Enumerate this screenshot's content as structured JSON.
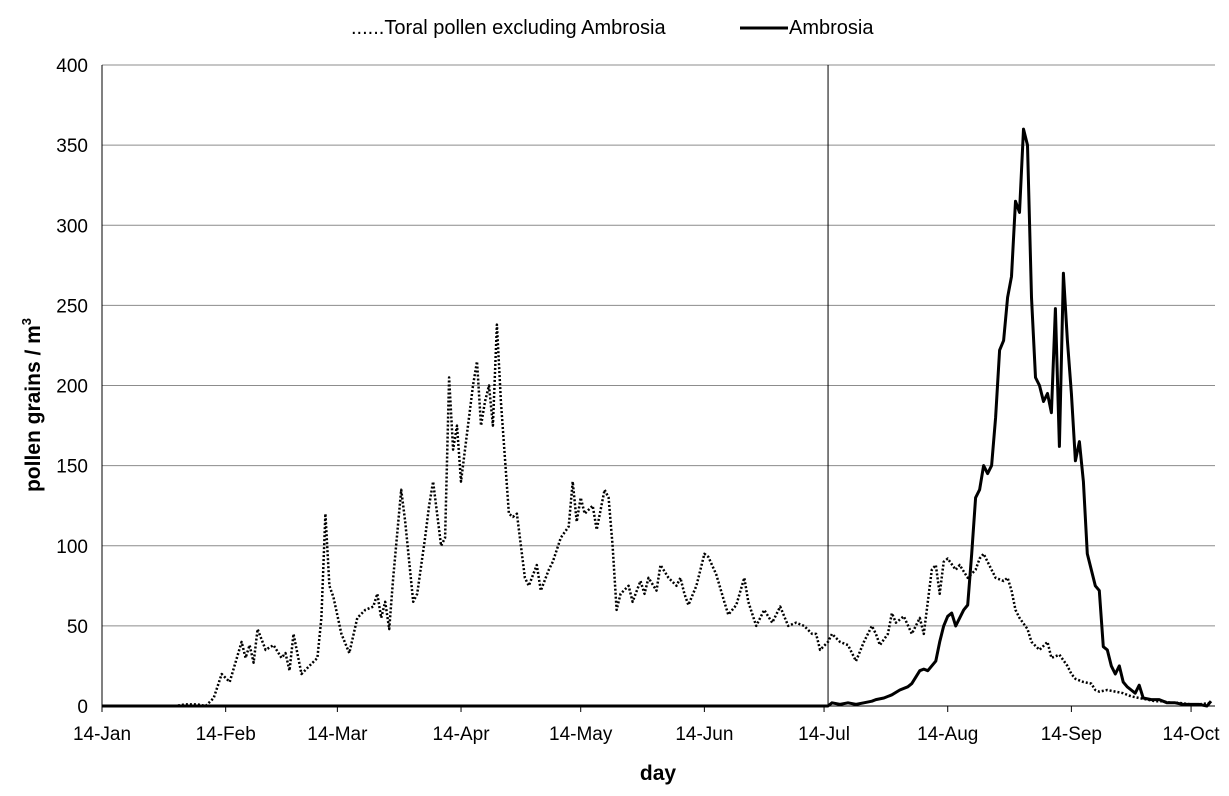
{
  "chart_data": {
    "type": "line",
    "title": "",
    "xlabel": "day",
    "ylabel": "pollen grains / m",
    "ylabel_superscript": "3",
    "ylim": [
      0,
      400
    ],
    "yticks": [
      0,
      50,
      100,
      150,
      200,
      250,
      300,
      350,
      400
    ],
    "xlim": [
      "14-Jan",
      "20-Oct"
    ],
    "xticks": [
      "14-Jan",
      "14-Feb",
      "14-Mar",
      "14-Apr",
      "14-May",
      "14-Jun",
      "14-Jul",
      "14-Aug",
      "14-Sep",
      "14-Oct"
    ],
    "grid": "horizontal",
    "legend_position": "top",
    "reference_line_x": "15-Jul",
    "series": [
      {
        "name": "Toral pollen excluding Ambrosia",
        "legend_label": "......Toral pollen excluding Ambrosia",
        "style": "dotted",
        "color": "#000000",
        "points": [
          [
            "14-Jan",
            0
          ],
          [
            "1-Feb",
            0
          ],
          [
            "4-Feb",
            1
          ],
          [
            "7-Feb",
            1
          ],
          [
            "9-Feb",
            0
          ],
          [
            "11-Feb",
            5
          ],
          [
            "13-Feb",
            20
          ],
          [
            "15-Feb",
            15
          ],
          [
            "18-Feb",
            40
          ],
          [
            "19-Feb",
            30
          ],
          [
            "20-Feb",
            38
          ],
          [
            "21-Feb",
            27
          ],
          [
            "22-Feb",
            48
          ],
          [
            "24-Feb",
            35
          ],
          [
            "26-Feb",
            38
          ],
          [
            "28-Feb",
            30
          ],
          [
            "1-Mar",
            33
          ],
          [
            "2-Mar",
            22
          ],
          [
            "3-Mar",
            45
          ],
          [
            "5-Mar",
            20
          ],
          [
            "7-Mar",
            25
          ],
          [
            "9-Mar",
            30
          ],
          [
            "10-Mar",
            55
          ],
          [
            "11-Mar",
            120
          ],
          [
            "12-Mar",
            75
          ],
          [
            "13-Mar",
            68
          ],
          [
            "15-Mar",
            45
          ],
          [
            "17-Mar",
            33
          ],
          [
            "19-Mar",
            55
          ],
          [
            "21-Mar",
            60
          ],
          [
            "23-Mar",
            62
          ],
          [
            "24-Mar",
            70
          ],
          [
            "25-Mar",
            55
          ],
          [
            "26-Mar",
            65
          ],
          [
            "27-Mar",
            48
          ],
          [
            "28-Mar",
            80
          ],
          [
            "30-Mar",
            135
          ],
          [
            "31-Mar",
            115
          ],
          [
            "1-Apr",
            90
          ],
          [
            "2-Apr",
            65
          ],
          [
            "3-Apr",
            70
          ],
          [
            "5-Apr",
            105
          ],
          [
            "6-Apr",
            125
          ],
          [
            "7-Apr",
            140
          ],
          [
            "9-Apr",
            100
          ],
          [
            "10-Apr",
            105
          ],
          [
            "11-Apr",
            205
          ],
          [
            "12-Apr",
            160
          ],
          [
            "13-Apr",
            175
          ],
          [
            "14-Apr",
            140
          ],
          [
            "15-Apr",
            160
          ],
          [
            "17-Apr",
            200
          ],
          [
            "18-Apr",
            215
          ],
          [
            "19-Apr",
            175
          ],
          [
            "20-Apr",
            190
          ],
          [
            "21-Apr",
            200
          ],
          [
            "22-Apr",
            175
          ],
          [
            "23-Apr",
            238
          ],
          [
            "24-Apr",
            190
          ],
          [
            "25-Apr",
            155
          ],
          [
            "26-Apr",
            120
          ],
          [
            "27-Apr",
            118
          ],
          [
            "28-Apr",
            120
          ],
          [
            "30-Apr",
            80
          ],
          [
            "1-May",
            75
          ],
          [
            "3-May",
            88
          ],
          [
            "4-May",
            72
          ],
          [
            "6-May",
            85
          ],
          [
            "7-May",
            90
          ],
          [
            "9-May",
            105
          ],
          [
            "11-May",
            112
          ],
          [
            "12-May",
            140
          ],
          [
            "13-May",
            115
          ],
          [
            "14-May",
            130
          ],
          [
            "15-May",
            120
          ],
          [
            "17-May",
            125
          ],
          [
            "18-May",
            110
          ],
          [
            "20-May",
            135
          ],
          [
            "21-May",
            130
          ],
          [
            "22-May",
            100
          ],
          [
            "23-May",
            60
          ],
          [
            "24-May",
            70
          ],
          [
            "26-May",
            75
          ],
          [
            "27-May",
            65
          ],
          [
            "29-May",
            78
          ],
          [
            "30-May",
            70
          ],
          [
            "31-May",
            80
          ],
          [
            "2-Jun",
            72
          ],
          [
            "3-Jun",
            88
          ],
          [
            "5-Jun",
            80
          ],
          [
            "7-Jun",
            75
          ],
          [
            "8-Jun",
            80
          ],
          [
            "9-Jun",
            70
          ],
          [
            "10-Jun",
            63
          ],
          [
            "12-Jun",
            75
          ],
          [
            "14-Jun",
            95
          ],
          [
            "15-Jun",
            93
          ],
          [
            "17-Jun",
            82
          ],
          [
            "19-Jun",
            65
          ],
          [
            "20-Jun",
            57
          ],
          [
            "22-Jun",
            63
          ],
          [
            "24-Jun",
            80
          ],
          [
            "25-Jun",
            65
          ],
          [
            "27-Jun",
            50
          ],
          [
            "29-Jun",
            60
          ],
          [
            "1-Jul",
            52
          ],
          [
            "3-Jul",
            62
          ],
          [
            "5-Jul",
            50
          ],
          [
            "7-Jul",
            52
          ],
          [
            "9-Jul",
            50
          ],
          [
            "11-Jul",
            45
          ],
          [
            "12-Jul",
            45
          ],
          [
            "13-Jul",
            35
          ],
          [
            "15-Jul",
            40
          ],
          [
            "16-Jul",
            45
          ],
          [
            "18-Jul",
            40
          ],
          [
            "20-Jul",
            38
          ],
          [
            "21-Jul",
            33
          ],
          [
            "22-Jul",
            28
          ],
          [
            "24-Jul",
            40
          ],
          [
            "26-Jul",
            50
          ],
          [
            "27-Jul",
            45
          ],
          [
            "28-Jul",
            38
          ],
          [
            "30-Jul",
            45
          ],
          [
            "31-Jul",
            58
          ],
          [
            "1-Aug",
            52
          ],
          [
            "3-Aug",
            56
          ],
          [
            "5-Aug",
            45
          ],
          [
            "7-Aug",
            55
          ],
          [
            "8-Aug",
            45
          ],
          [
            "10-Aug",
            85
          ],
          [
            "11-Aug",
            88
          ],
          [
            "12-Aug",
            70
          ],
          [
            "13-Aug",
            90
          ],
          [
            "14-Aug",
            92
          ],
          [
            "16-Aug",
            85
          ],
          [
            "17-Aug",
            88
          ],
          [
            "19-Aug",
            80
          ],
          [
            "21-Aug",
            85
          ],
          [
            "22-Aug",
            92
          ],
          [
            "23-Aug",
            95
          ],
          [
            "24-Aug",
            90
          ],
          [
            "26-Aug",
            80
          ],
          [
            "28-Aug",
            78
          ],
          [
            "29-Aug",
            80
          ],
          [
            "30-Aug",
            72
          ],
          [
            "31-Aug",
            60
          ],
          [
            "1-Sep",
            55
          ],
          [
            "3-Sep",
            48
          ],
          [
            "4-Sep",
            40
          ],
          [
            "6-Sep",
            35
          ],
          [
            "8-Sep",
            40
          ],
          [
            "9-Sep",
            30
          ],
          [
            "11-Sep",
            32
          ],
          [
            "13-Sep",
            25
          ],
          [
            "14-Sep",
            20
          ],
          [
            "15-Sep",
            17
          ],
          [
            "17-Sep",
            15
          ],
          [
            "19-Sep",
            14
          ],
          [
            "20-Sep",
            10
          ],
          [
            "21-Sep",
            9
          ],
          [
            "23-Sep",
            10
          ],
          [
            "25-Sep",
            9
          ],
          [
            "27-Sep",
            8
          ],
          [
            "29-Sep",
            6
          ],
          [
            "1-Oct",
            5
          ],
          [
            "3-Oct",
            4
          ],
          [
            "5-Oct",
            3
          ],
          [
            "7-Oct",
            3
          ],
          [
            "9-Oct",
            2
          ],
          [
            "11-Oct",
            2
          ],
          [
            "14-Oct",
            1
          ],
          [
            "16-Oct",
            1
          ],
          [
            "19-Oct",
            2
          ]
        ]
      },
      {
        "name": "Ambrosia",
        "legend_label": "Ambrosia",
        "style": "solid",
        "color": "#000000",
        "points": [
          [
            "14-Jan",
            0
          ],
          [
            "15-Jul",
            0
          ],
          [
            "16-Jul",
            2
          ],
          [
            "18-Jul",
            1
          ],
          [
            "20-Jul",
            2
          ],
          [
            "22-Jul",
            1
          ],
          [
            "24-Jul",
            2
          ],
          [
            "26-Jul",
            3
          ],
          [
            "27-Jul",
            4
          ],
          [
            "29-Jul",
            5
          ],
          [
            "31-Jul",
            7
          ],
          [
            "2-Aug",
            10
          ],
          [
            "4-Aug",
            12
          ],
          [
            "5-Aug",
            14
          ],
          [
            "7-Aug",
            22
          ],
          [
            "8-Aug",
            23
          ],
          [
            "9-Aug",
            22
          ],
          [
            "11-Aug",
            28
          ],
          [
            "12-Aug",
            40
          ],
          [
            "13-Aug",
            50
          ],
          [
            "14-Aug",
            56
          ],
          [
            "15-Aug",
            58
          ],
          [
            "16-Aug",
            50
          ],
          [
            "17-Aug",
            55
          ],
          [
            "18-Aug",
            60
          ],
          [
            "19-Aug",
            63
          ],
          [
            "20-Aug",
            95
          ],
          [
            "21-Aug",
            130
          ],
          [
            "22-Aug",
            135
          ],
          [
            "23-Aug",
            150
          ],
          [
            "24-Aug",
            145
          ],
          [
            "25-Aug",
            150
          ],
          [
            "26-Aug",
            180
          ],
          [
            "27-Aug",
            222
          ],
          [
            "28-Aug",
            228
          ],
          [
            "29-Aug",
            255
          ],
          [
            "30-Aug",
            268
          ],
          [
            "31-Aug",
            315
          ],
          [
            "1-Sep",
            308
          ],
          [
            "2-Sep",
            360
          ],
          [
            "3-Sep",
            350
          ],
          [
            "4-Sep",
            255
          ],
          [
            "5-Sep",
            205
          ],
          [
            "6-Sep",
            200
          ],
          [
            "7-Sep",
            190
          ],
          [
            "8-Sep",
            195
          ],
          [
            "9-Sep",
            183
          ],
          [
            "10-Sep",
            248
          ],
          [
            "11-Sep",
            162
          ],
          [
            "12-Sep",
            270
          ],
          [
            "13-Sep",
            228
          ],
          [
            "14-Sep",
            195
          ],
          [
            "15-Sep",
            153
          ],
          [
            "16-Sep",
            165
          ],
          [
            "17-Sep",
            140
          ],
          [
            "18-Sep",
            95
          ],
          [
            "19-Sep",
            85
          ],
          [
            "20-Sep",
            75
          ],
          [
            "21-Sep",
            72
          ],
          [
            "22-Sep",
            37
          ],
          [
            "23-Sep",
            35
          ],
          [
            "24-Sep",
            25
          ],
          [
            "25-Sep",
            20
          ],
          [
            "26-Sep",
            25
          ],
          [
            "27-Sep",
            15
          ],
          [
            "28-Sep",
            12
          ],
          [
            "29-Sep",
            10
          ],
          [
            "30-Sep",
            8
          ],
          [
            "1-Oct",
            13
          ],
          [
            "2-Oct",
            5
          ],
          [
            "4-Oct",
            4
          ],
          [
            "6-Oct",
            4
          ],
          [
            "8-Oct",
            2
          ],
          [
            "10-Oct",
            2
          ],
          [
            "12-Oct",
            1
          ],
          [
            "14-Oct",
            1
          ],
          [
            "16-Oct",
            1
          ],
          [
            "18-Oct",
            0
          ],
          [
            "19-Oct",
            3
          ]
        ]
      }
    ]
  }
}
